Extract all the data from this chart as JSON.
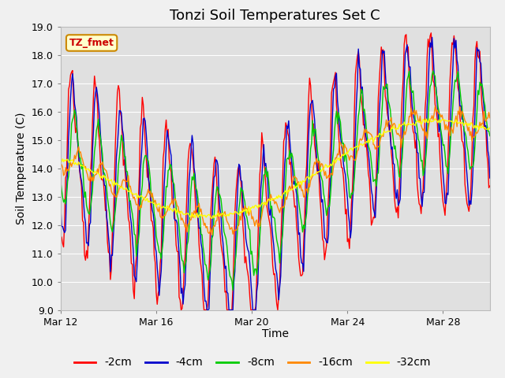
{
  "title": "Tonzi Soil Temperatures Set C",
  "xlabel": "Time",
  "ylabel": "Soil Temperature (C)",
  "ylim": [
    9.0,
    19.0
  ],
  "yticks": [
    9.0,
    10.0,
    11.0,
    12.0,
    13.0,
    14.0,
    15.0,
    16.0,
    17.0,
    18.0,
    19.0
  ],
  "xtick_labels": [
    "Mar 12",
    "Mar 16",
    "Mar 20",
    "Mar 24",
    "Mar 28"
  ],
  "xtick_positions": [
    0,
    96,
    192,
    288,
    384
  ],
  "n_points": 432,
  "series_colors": [
    "#ff0000",
    "#0000cc",
    "#00cc00",
    "#ff8800",
    "#ffff00"
  ],
  "series_labels": [
    "-2cm",
    "-4cm",
    "-8cm",
    "-16cm",
    "-32cm"
  ],
  "legend_label": "TZ_fmet",
  "legend_bg": "#ffffcc",
  "legend_border": "#cc8800",
  "fig_bg_color": "#f0f0f0",
  "plot_bg_color": "#e0e0e0",
  "grid_color": "#ffffff",
  "title_fontsize": 13,
  "axis_label_fontsize": 10,
  "tick_fontsize": 9,
  "linewidth": 1.0
}
